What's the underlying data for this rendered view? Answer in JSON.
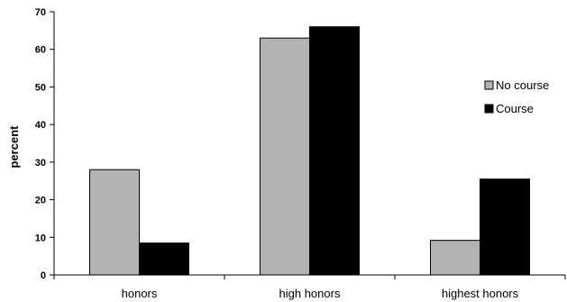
{
  "chart_data": {
    "type": "bar",
    "categories": [
      "honors",
      "high honors",
      "highest honors"
    ],
    "series": [
      {
        "name": "No course",
        "color": "#b3b3b3",
        "values": [
          28,
          63,
          9.2
        ]
      },
      {
        "name": "Course",
        "color": "#000000",
        "values": [
          8.5,
          66,
          25.5
        ]
      }
    ],
    "ylabel": "percent",
    "xlabel": "",
    "ylim": [
      0,
      70
    ],
    "yticks": [
      "0",
      "10",
      "20",
      "30",
      "40",
      "50",
      "60",
      "70"
    ],
    "grid": false,
    "legend_position": "right"
  }
}
